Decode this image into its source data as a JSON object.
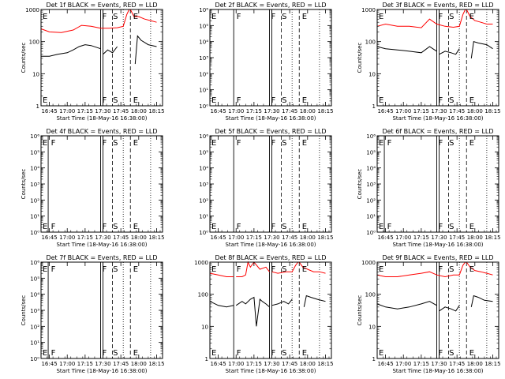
{
  "figure": {
    "description_labels": {
      "ylabel": "Counts/sec",
      "xlabel": "Start Time (18-May-16 16:38:00)"
    },
    "x_ticks": [
      "16:45",
      "17:00",
      "17:15",
      "17:30",
      "17:45",
      "18:00",
      "18:15"
    ],
    "colors": {
      "events": "#000000",
      "lld": "#ff0000",
      "frame": "#000000"
    }
  },
  "chart_data": [
    {
      "type": "line",
      "title": "Det 1f BLACK = Events, RED = LLD",
      "xlabel": "Start Time (18-May-16 16:38:00)",
      "ylabel": "Counts/sec",
      "y_scale": "log",
      "ylim": [
        1,
        1000
      ],
      "y_ticks": [
        "1",
        "10",
        "100",
        "1000"
      ],
      "xlim": [
        "16:38",
        "18:20"
      ],
      "markers": [
        {
          "label": "E",
          "x": "16:38"
        },
        {
          "label": "F",
          "x": "17:28"
        },
        {
          "label": "S",
          "x": "17:37"
        },
        {
          "label": "E",
          "x": "17:54"
        }
      ],
      "solid_lines": [
        "17:28",
        "17:30"
      ],
      "dashed_lines": [
        "17:38",
        "17:53"
      ],
      "dotted_lines": [
        "17:47",
        "18:10"
      ],
      "series": [
        {
          "name": "Events",
          "color": "#000000",
          "segments": [
            {
              "x": [
                "16:38",
                "16:45",
                "16:52",
                "17:00",
                "17:05",
                "17:10",
                "17:15",
                "17:20",
                "17:28"
              ],
              "y": [
                35,
                35,
                40,
                45,
                55,
                70,
                80,
                75,
                60
              ]
            },
            {
              "x": [
                "17:30",
                "17:34",
                "17:38",
                "17:42"
              ],
              "y": [
                40,
                55,
                45,
                70
              ]
            },
            {
              "x": [
                "17:57",
                "17:59",
                "18:02",
                "18:08",
                "18:15"
              ],
              "y": [
                20,
                150,
                110,
                80,
                70
              ]
            }
          ]
        },
        {
          "name": "LLD",
          "color": "#ff0000",
          "segments": [
            {
              "x": [
                "16:38",
                "16:45",
                "16:55",
                "17:05",
                "17:12",
                "17:20",
                "17:28",
                "17:35",
                "17:42",
                "17:47",
                "17:50",
                "17:52"
              ],
              "y": [
                250,
                200,
                190,
                230,
                320,
                300,
                260,
                260,
                270,
                300,
                700,
                1000
              ]
            },
            {
              "x": [
                "17:53",
                "17:56",
                "18:00",
                "18:05",
                "18:10",
                "18:15"
              ],
              "y": [
                1000,
                600,
                600,
                500,
                450,
                400
              ]
            }
          ]
        }
      ]
    },
    {
      "type": "line",
      "title": "Det 2f BLACK = Events, RED = LLD",
      "xlabel": "Start Time (18-May-16 16:38:00)",
      "ylabel": "",
      "y_scale": "log",
      "ylim": [
        1,
        1000000
      ],
      "y_ticks": [
        "10⁰",
        "10¹",
        "10²",
        "10³",
        "10⁴",
        "10⁵",
        "10⁶"
      ],
      "xlim": [
        "16:38",
        "18:20"
      ],
      "markers": [
        {
          "label": "E",
          "x": "16:38"
        },
        {
          "label": "F",
          "x": "16:59"
        },
        {
          "label": "F",
          "x": "17:28"
        },
        {
          "label": "S",
          "x": "17:37"
        },
        {
          "label": "E",
          "x": "17:54"
        }
      ],
      "solid_lines": [
        "16:58",
        "17:28",
        "17:30"
      ],
      "dashed_lines": [
        "17:38",
        "17:53"
      ],
      "dotted_lines": [
        "17:47",
        "18:10"
      ],
      "series": []
    },
    {
      "type": "line",
      "title": "Det 3f BLACK = Events, RED = LLD",
      "xlabel": "Start Time (18-May-16 16:38:00)",
      "ylabel": "Counts/sec",
      "y_scale": "log",
      "ylim": [
        1,
        1000
      ],
      "y_ticks": [
        "1",
        "10",
        "100",
        "1000"
      ],
      "xlim": [
        "16:38",
        "18:20"
      ],
      "markers": [
        {
          "label": "E",
          "x": "16:38"
        },
        {
          "label": "F",
          "x": "17:28"
        },
        {
          "label": "S",
          "x": "17:37"
        },
        {
          "label": "E",
          "x": "17:54"
        }
      ],
      "solid_lines": [
        "17:28",
        "17:30"
      ],
      "dashed_lines": [
        "17:38",
        "17:53"
      ],
      "dotted_lines": [
        "17:47",
        "18:10"
      ],
      "series": [
        {
          "name": "Events",
          "color": "#000000",
          "segments": [
            {
              "x": [
                "16:38",
                "16:45",
                "16:55",
                "17:05",
                "17:15",
                "17:22",
                "17:28"
              ],
              "y": [
                70,
                60,
                55,
                50,
                45,
                70,
                50
              ]
            },
            {
              "x": [
                "17:30",
                "17:35",
                "17:40",
                "17:44",
                "17:47"
              ],
              "y": [
                40,
                50,
                45,
                40,
                60
              ]
            },
            {
              "x": [
                "17:57",
                "17:59",
                "18:03",
                "18:10",
                "18:15"
              ],
              "y": [
                30,
                100,
                90,
                80,
                60
              ]
            }
          ]
        },
        {
          "name": "LLD",
          "color": "#ff0000",
          "segments": [
            {
              "x": [
                "16:38",
                "16:45",
                "16:55",
                "17:05",
                "17:15",
                "17:22",
                "17:28",
                "17:35",
                "17:42",
                "17:47",
                "17:50",
                "17:52"
              ],
              "y": [
                300,
                350,
                300,
                300,
                270,
                500,
                350,
                300,
                280,
                300,
                700,
                1000
              ]
            },
            {
              "x": [
                "17:53",
                "17:56",
                "18:00",
                "18:05",
                "18:10",
                "18:15"
              ],
              "y": [
                1000,
                600,
                450,
                400,
                350,
                350
              ]
            }
          ]
        }
      ]
    },
    {
      "type": "line",
      "title": "Det 4f BLACK = Events, RED = LLD",
      "xlabel": "Start Time (18-May-16 16:38:00)",
      "ylabel": "Counts/sec",
      "y_scale": "log",
      "ylim": [
        1,
        1000000
      ],
      "y_ticks": [
        "10⁰",
        "10¹",
        "10²",
        "10³",
        "10⁴",
        "10⁵",
        "10⁶"
      ],
      "xlim": [
        "16:38",
        "18:20"
      ],
      "markers": [
        {
          "label": "E",
          "x": "16:38"
        },
        {
          "label": "F",
          "x": "16:45"
        },
        {
          "label": "F",
          "x": "17:28"
        },
        {
          "label": "S",
          "x": "17:37"
        },
        {
          "label": "E",
          "x": "17:54"
        }
      ],
      "solid_lines": [
        "16:44",
        "17:28",
        "17:30"
      ],
      "dashed_lines": [
        "17:38",
        "17:53"
      ],
      "dotted_lines": [
        "17:47",
        "18:10"
      ],
      "series": []
    },
    {
      "type": "line",
      "title": "Det 5f BLACK = Events, RED = LLD",
      "xlabel": "Start Time (18-May-16 16:38:00)",
      "ylabel": "",
      "y_scale": "log",
      "ylim": [
        1,
        1000000
      ],
      "y_ticks": [
        "10⁰",
        "10¹",
        "10²",
        "10³",
        "10⁴",
        "10⁵",
        "10⁶"
      ],
      "xlim": [
        "16:38",
        "18:20"
      ],
      "markers": [
        {
          "label": "E",
          "x": "16:38"
        },
        {
          "label": "F",
          "x": "16:59"
        },
        {
          "label": "F",
          "x": "17:28"
        },
        {
          "label": "S",
          "x": "17:37"
        },
        {
          "label": "E",
          "x": "17:54"
        }
      ],
      "solid_lines": [
        "16:58",
        "17:28",
        "17:30"
      ],
      "dashed_lines": [
        "17:38",
        "17:53"
      ],
      "dotted_lines": [
        "17:47",
        "18:10"
      ],
      "series": []
    },
    {
      "type": "line",
      "title": "Det 6f BLACK = Events, RED = LLD",
      "xlabel": "Start Time (18-May-16 16:38:00)",
      "ylabel": "Counts/sec",
      "y_scale": "log",
      "ylim": [
        1,
        1000000
      ],
      "y_ticks": [
        "10⁰",
        "10¹",
        "10²",
        "10³",
        "10⁴",
        "10⁵",
        "10⁶"
      ],
      "xlim": [
        "16:38",
        "18:20"
      ],
      "markers": [
        {
          "label": "E",
          "x": "16:38"
        },
        {
          "label": "F",
          "x": "16:45"
        },
        {
          "label": "F",
          "x": "17:28"
        },
        {
          "label": "S",
          "x": "17:37"
        },
        {
          "label": "E",
          "x": "17:54"
        }
      ],
      "solid_lines": [
        "16:44",
        "17:28",
        "17:30"
      ],
      "dashed_lines": [
        "17:38",
        "17:53"
      ],
      "dotted_lines": [
        "17:47",
        "18:10"
      ],
      "series": []
    },
    {
      "type": "line",
      "title": "Det 7f BLACK = Events, RED = LLD",
      "xlabel": "Start Time (18-May-16 16:38:00)",
      "ylabel": "Counts/sec",
      "y_scale": "log",
      "ylim": [
        1,
        1000000
      ],
      "y_ticks": [
        "10⁰",
        "10¹",
        "10²",
        "10³",
        "10⁴",
        "10⁵",
        "10⁶"
      ],
      "xlim": [
        "16:38",
        "18:20"
      ],
      "markers": [
        {
          "label": "E",
          "x": "16:38"
        },
        {
          "label": "F",
          "x": "16:45"
        },
        {
          "label": "F",
          "x": "17:28"
        },
        {
          "label": "S",
          "x": "17:37"
        },
        {
          "label": "E",
          "x": "17:54"
        }
      ],
      "solid_lines": [
        "16:44",
        "17:28",
        "17:30"
      ],
      "dashed_lines": [
        "17:38",
        "17:53"
      ],
      "dotted_lines": [
        "17:47",
        "18:10"
      ],
      "series": []
    },
    {
      "type": "line",
      "title": "Det 8f BLACK = Events, RED = LLD",
      "xlabel": "Start Time (18-May-16 16:38:00)",
      "ylabel": "",
      "y_scale": "log",
      "ylim": [
        1,
        1000
      ],
      "y_ticks": [
        "1",
        "10",
        "100",
        "1000"
      ],
      "xlim": [
        "16:38",
        "18:20"
      ],
      "markers": [
        {
          "label": "E",
          "x": "16:38"
        },
        {
          "label": "F",
          "x": "16:59"
        },
        {
          "label": "F",
          "x": "17:28"
        },
        {
          "label": "S",
          "x": "17:37"
        },
        {
          "label": "E",
          "x": "17:54"
        }
      ],
      "solid_lines": [
        "16:58",
        "17:28",
        "17:30"
      ],
      "dashed_lines": [
        "17:38",
        "17:53"
      ],
      "dotted_lines": [
        "17:47",
        "18:10"
      ],
      "series": [
        {
          "name": "Events",
          "color": "#000000",
          "segments": [
            {
              "x": [
                "16:38",
                "16:45",
                "16:52",
                "16:58"
              ],
              "y": [
                60,
                45,
                40,
                45
              ]
            },
            {
              "x": [
                "17:00",
                "17:05",
                "17:08",
                "17:12",
                "17:15",
                "17:17",
                "17:20",
                "17:22",
                "17:25",
                "17:28"
              ],
              "y": [
                45,
                60,
                50,
                70,
                80,
                10,
                70,
                60,
                50,
                40
              ]
            },
            {
              "x": [
                "17:30",
                "17:35",
                "17:40",
                "17:44",
                "17:47"
              ],
              "y": [
                45,
                50,
                60,
                50,
                70
              ]
            },
            {
              "x": [
                "17:57",
                "17:59",
                "18:03",
                "18:08",
                "18:15"
              ],
              "y": [
                40,
                90,
                80,
                70,
                60
              ]
            }
          ]
        },
        {
          "name": "LLD",
          "color": "#ff0000",
          "segments": [
            {
              "x": [
                "16:38",
                "16:45",
                "16:52",
                "16:58"
              ],
              "y": [
                450,
                400,
                350,
                350
              ]
            },
            {
              "x": [
                "17:00",
                "17:05",
                "17:08",
                "17:10",
                "17:12",
                "17:15",
                "17:20",
                "17:25",
                "17:28"
              ],
              "y": [
                350,
                350,
                400,
                1000,
                700,
                1000,
                600,
                700,
                500
              ]
            },
            {
              "x": [
                "17:30",
                "17:35",
                "17:42",
                "17:47",
                "17:50",
                "17:52"
              ],
              "y": [
                500,
                450,
                500,
                500,
                800,
                1000
              ]
            },
            {
              "x": [
                "17:53",
                "17:56",
                "18:00",
                "18:05",
                "18:10",
                "18:15"
              ],
              "y": [
                1000,
                700,
                600,
                500,
                500,
                450
              ]
            }
          ]
        }
      ]
    },
    {
      "type": "line",
      "title": "Det 9f BLACK = Events, RED = LLD",
      "xlabel": "Start Time (18-May-16 16:38:00)",
      "ylabel": "Counts/sec",
      "y_scale": "log",
      "ylim": [
        1,
        1000
      ],
      "y_ticks": [
        "1",
        "10",
        "100",
        "1000"
      ],
      "xlim": [
        "16:38",
        "18:20"
      ],
      "markers": [
        {
          "label": "E",
          "x": "16:38"
        },
        {
          "label": "F",
          "x": "17:28"
        },
        {
          "label": "S",
          "x": "17:37"
        },
        {
          "label": "E",
          "x": "17:54"
        }
      ],
      "solid_lines": [
        "17:28",
        "17:30"
      ],
      "dashed_lines": [
        "17:38",
        "17:53"
      ],
      "dotted_lines": [
        "17:47",
        "18:10"
      ],
      "series": [
        {
          "name": "Events",
          "color": "#000000",
          "segments": [
            {
              "x": [
                "16:38",
                "16:45",
                "16:55",
                "17:05",
                "17:15",
                "17:22",
                "17:28"
              ],
              "y": [
                50,
                40,
                35,
                40,
                50,
                60,
                45
              ]
            },
            {
              "x": [
                "17:30",
                "17:35",
                "17:40",
                "17:44",
                "17:47"
              ],
              "y": [
                30,
                40,
                35,
                30,
                45
              ]
            },
            {
              "x": [
                "17:57",
                "17:59",
                "18:03",
                "18:08",
                "18:15"
              ],
              "y": [
                40,
                90,
                80,
                65,
                60
              ]
            }
          ]
        },
        {
          "name": "LLD",
          "color": "#ff0000",
          "segments": [
            {
              "x": [
                "16:38",
                "16:45",
                "16:55",
                "17:05",
                "17:15",
                "17:22",
                "17:28",
                "17:35",
                "17:42",
                "17:47",
                "17:50",
                "17:52"
              ],
              "y": [
                400,
                350,
                350,
                400,
                450,
                500,
                400,
                350,
                400,
                400,
                800,
                1000
              ]
            },
            {
              "x": [
                "17:53",
                "17:56",
                "18:00",
                "18:05",
                "18:10",
                "18:15"
              ],
              "y": [
                1000,
                700,
                550,
                500,
                450,
                400
              ]
            }
          ]
        }
      ]
    }
  ]
}
